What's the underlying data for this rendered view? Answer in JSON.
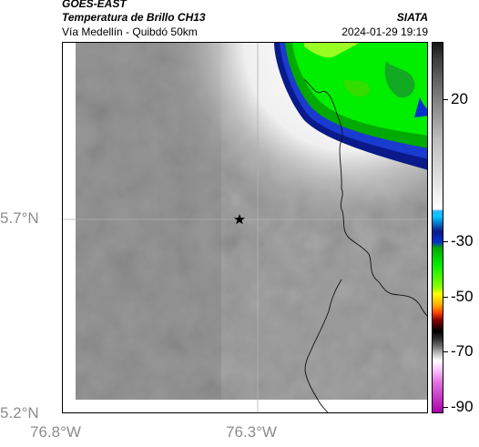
{
  "header": {
    "source": "GOES-EAST",
    "product": "Temperatura de Brillo CH13",
    "route": "Vía Medellín - Quibdó 50km",
    "org": "SIATA",
    "datetime": "2024-01-29 19:19"
  },
  "map": {
    "lat_labels": [
      "5.7°N",
      "5.2°N"
    ],
    "lon_labels": [
      "76.8°W",
      "76.3°W"
    ],
    "marker": "star-marker"
  },
  "colorbar": {
    "labels": [
      "20",
      "-30",
      "-50",
      "-70",
      "-90"
    ],
    "colors": {
      "cold_top_green": "#00ee00",
      "cold_yellow": "#ffff00",
      "cloud_blue": "#0033cc",
      "cyan": "#00c8ff",
      "magenta": "#aa00aa"
    }
  }
}
